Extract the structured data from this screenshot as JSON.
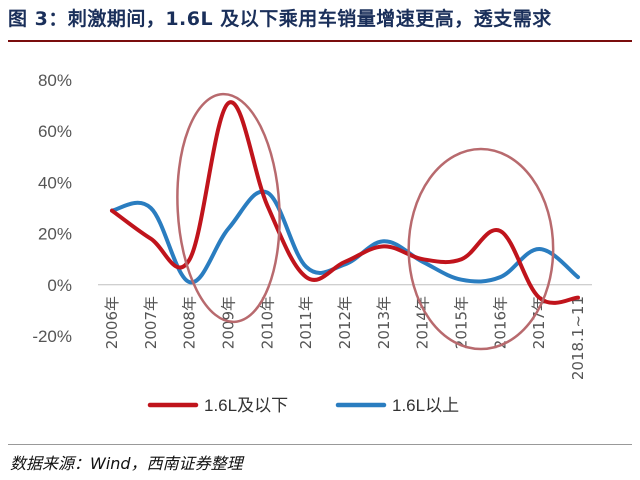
{
  "figure": {
    "title": "图 3：刺激期间，1.6L 及以下乘用车销量增速更高，透支需求",
    "source": "数据来源：Wind，西南证券整理"
  },
  "colors": {
    "title": "#1a2f5a",
    "series_red": "#c0141c",
    "series_blue": "#2a7dc0",
    "highlight_circle": "#b86a6e"
  },
  "chart_data": {
    "type": "line",
    "categories": [
      "2006年",
      "2007年",
      "2008年",
      "2009年",
      "2010年",
      "2011年",
      "2012年",
      "2013年",
      "2014年",
      "2015年",
      "2016年",
      "2017年",
      "2018.1~11"
    ],
    "y_ticks": [
      "80%",
      "60%",
      "40%",
      "20%",
      "0%",
      "-20%"
    ],
    "ylim": [
      -20,
      80
    ],
    "unit": "%",
    "grid": false,
    "legend_position": "bottom",
    "series": [
      {
        "name": "1.6L及以下",
        "color": "#c0141c",
        "values": [
          29,
          18,
          10,
          71,
          31,
          3,
          9,
          15,
          10,
          10,
          21,
          -5,
          -5
        ]
      },
      {
        "name": "1.6L以上",
        "color": "#2a7dc0",
        "values": [
          29,
          30,
          1,
          22,
          36,
          7,
          8,
          17,
          9,
          2,
          3,
          14,
          3
        ]
      }
    ],
    "highlights": [
      {
        "from": "2008年",
        "to": "2010年",
        "shape": "ellipse"
      },
      {
        "from": "2014年",
        "to": "2017年",
        "shape": "ellipse"
      }
    ]
  }
}
